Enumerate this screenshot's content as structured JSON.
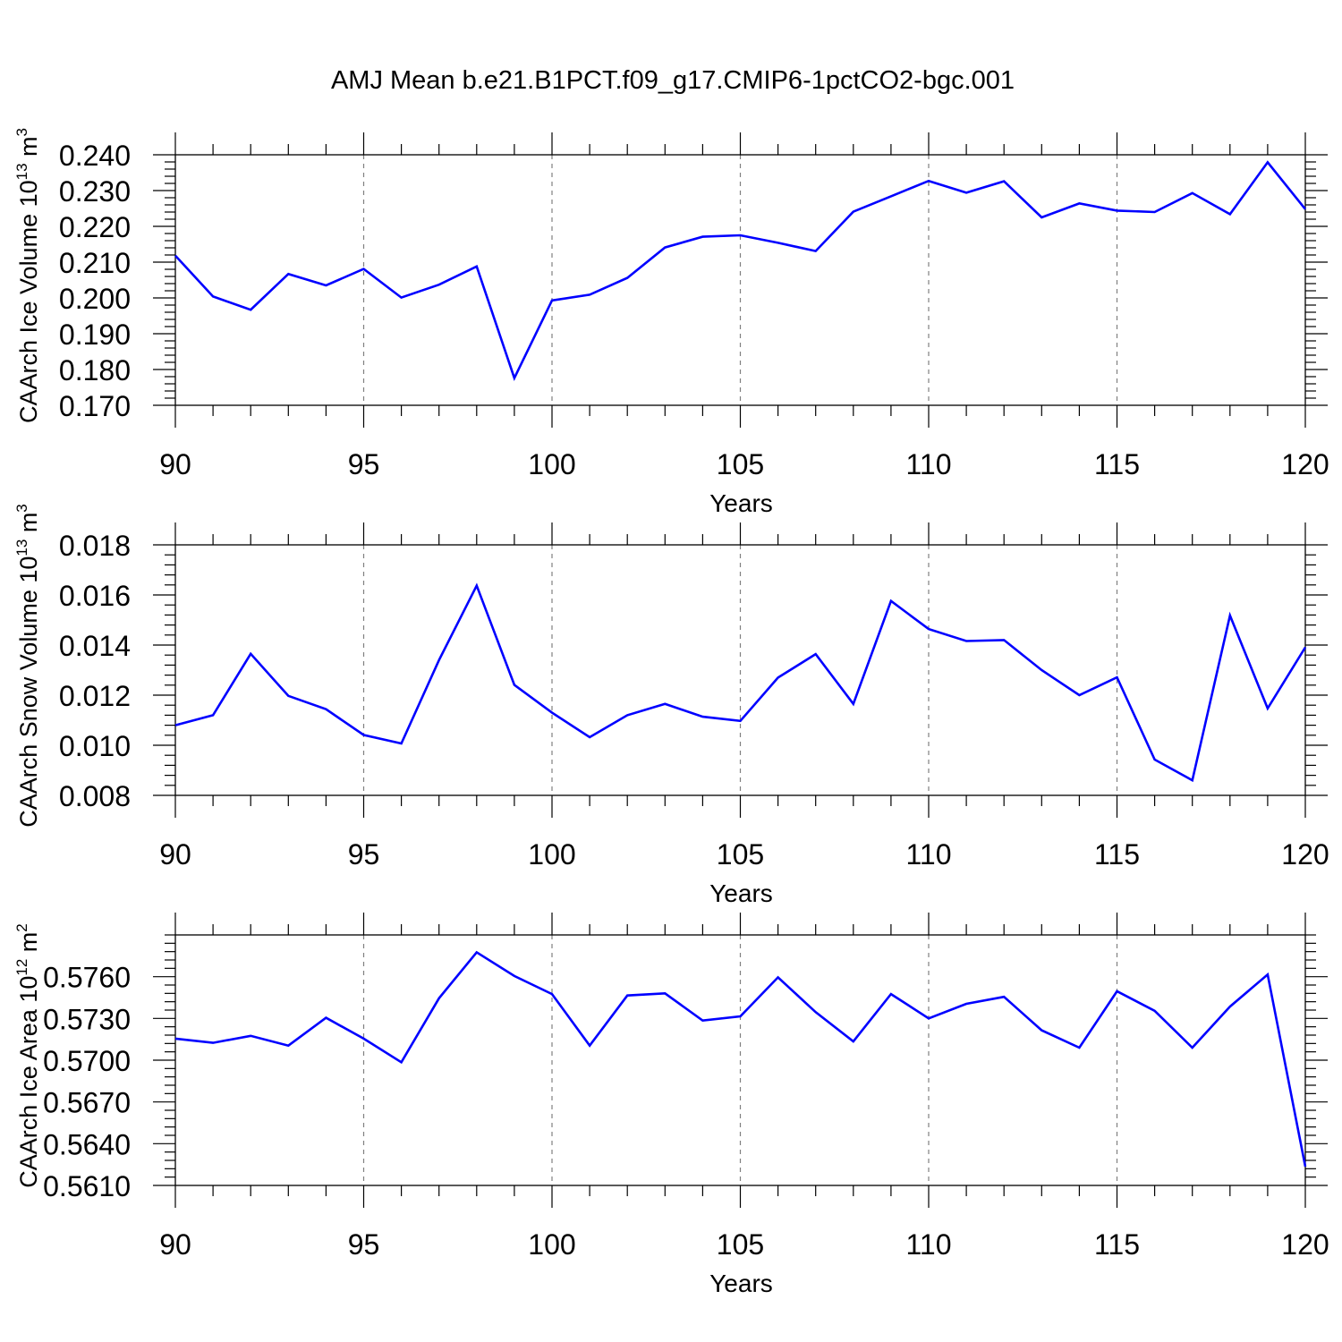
{
  "figure_title": "AMJ Mean b.e21.B1PCT.f09_g17.CMIP6-1pctCO2-bgc.001",
  "chart_data": [
    {
      "type": "line",
      "title": "AMJ Mean b.e21.B1PCT.f09_g17.CMIP6-1pctCO2-bgc.001",
      "ylabel": "CAArch Ice Volume",
      "ylabel_unit": "10",
      "ylabel_unit_exp": "13",
      "ylabel_unit_base": " m",
      "ylabel_unit_base_exp": "3",
      "xlabel": "Years",
      "xlim": [
        90,
        120
      ],
      "ylim": [
        0.17,
        0.24
      ],
      "x_ticks": [
        90,
        95,
        100,
        105,
        110,
        115,
        120
      ],
      "x_tick_labels": [
        "90",
        "95",
        "100",
        "105",
        "110",
        "115",
        "120"
      ],
      "y_ticks": [
        0.17,
        0.18,
        0.19,
        0.2,
        0.21,
        0.22,
        0.23,
        0.24
      ],
      "y_tick_labels": [
        "0.170",
        "0.180",
        "0.190",
        "0.200",
        "0.210",
        "0.220",
        "0.230",
        "0.240"
      ],
      "grid": "vertical dashed at major x ticks",
      "color": "#0000ff",
      "x": [
        90,
        91,
        92,
        93,
        94,
        95,
        96,
        97,
        98,
        99,
        100,
        101,
        102,
        103,
        104,
        105,
        106,
        107,
        108,
        109,
        110,
        111,
        112,
        113,
        114,
        115,
        116,
        117,
        118,
        119,
        120
      ],
      "y": [
        0.2118,
        0.2004,
        0.1967,
        0.2067,
        0.2035,
        0.2081,
        0.2001,
        0.2037,
        0.2088,
        0.1776,
        0.1993,
        0.2009,
        0.2056,
        0.2141,
        0.2171,
        0.2175,
        0.2154,
        0.2131,
        0.2241,
        0.2284,
        0.2327,
        0.2294,
        0.2326,
        0.2225,
        0.2264,
        0.2244,
        0.224,
        0.2293,
        0.2234,
        0.2379,
        0.2248
      ]
    },
    {
      "type": "line",
      "ylabel": "CAArch Snow Volume",
      "ylabel_unit": "10",
      "ylabel_unit_exp": "13",
      "ylabel_unit_base": " m",
      "ylabel_unit_base_exp": "3",
      "xlabel": "Years",
      "xlim": [
        90,
        120
      ],
      "ylim": [
        0.008,
        0.018
      ],
      "x_ticks": [
        90,
        95,
        100,
        105,
        110,
        115,
        120
      ],
      "x_tick_labels": [
        "90",
        "95",
        "100",
        "105",
        "110",
        "115",
        "120"
      ],
      "y_ticks": [
        0.008,
        0.01,
        0.012,
        0.014,
        0.016,
        0.018
      ],
      "y_tick_labels": [
        "0.008",
        "0.010",
        "0.012",
        "0.014",
        "0.016",
        "0.018"
      ],
      "grid": "vertical dashed at major x ticks",
      "color": "#0000ff",
      "x": [
        90,
        91,
        92,
        93,
        94,
        95,
        96,
        97,
        98,
        99,
        100,
        101,
        102,
        103,
        104,
        105,
        106,
        107,
        108,
        109,
        110,
        111,
        112,
        113,
        114,
        115,
        116,
        117,
        118,
        119,
        120
      ],
      "y": [
        0.0108,
        0.0112,
        0.01365,
        0.01197,
        0.01144,
        0.01041,
        0.01007,
        0.0134,
        0.01637,
        0.01241,
        0.0113,
        0.01032,
        0.0112,
        0.01165,
        0.01114,
        0.01097,
        0.0127,
        0.01364,
        0.01165,
        0.01576,
        0.01464,
        0.01416,
        0.0142,
        0.013,
        0.012,
        0.01271,
        0.00943,
        0.0086,
        0.01518,
        0.01147,
        0.01391
      ]
    },
    {
      "type": "line",
      "ylabel": "CAArch Ice Area",
      "ylabel_unit": "10",
      "ylabel_unit_exp": "12",
      "ylabel_unit_base": " m",
      "ylabel_unit_base_exp": "2",
      "xlabel": "Years",
      "xlim": [
        90,
        120
      ],
      "ylim": [
        0.561,
        0.579
      ],
      "x_ticks": [
        90,
        95,
        100,
        105,
        110,
        115,
        120
      ],
      "x_tick_labels": [
        "90",
        "95",
        "100",
        "105",
        "110",
        "115",
        "120"
      ],
      "y_ticks": [
        0.561,
        0.564,
        0.567,
        0.57,
        0.573,
        0.576
      ],
      "y_tick_labels": [
        "0.5610",
        "0.5640",
        "0.5670",
        "0.5700",
        "0.5730",
        "0.5760"
      ],
      "grid": "vertical dashed at major x ticks",
      "color": "#0000ff",
      "x": [
        90,
        91,
        92,
        93,
        94,
        95,
        96,
        97,
        98,
        99,
        100,
        101,
        102,
        103,
        104,
        105,
        106,
        107,
        108,
        109,
        110,
        111,
        112,
        113,
        114,
        115,
        116,
        117,
        118,
        119,
        120
      ],
      "y": [
        0.57155,
        0.57125,
        0.57175,
        0.57105,
        0.57305,
        0.57155,
        0.56985,
        0.57445,
        0.57775,
        0.57605,
        0.57475,
        0.57105,
        0.57465,
        0.5748,
        0.57285,
        0.57315,
        0.57595,
        0.57345,
        0.57135,
        0.57475,
        0.573,
        0.57405,
        0.57455,
        0.57215,
        0.5709,
        0.57495,
        0.57355,
        0.5709,
        0.57385,
        0.57615,
        0.56235
      ]
    }
  ]
}
